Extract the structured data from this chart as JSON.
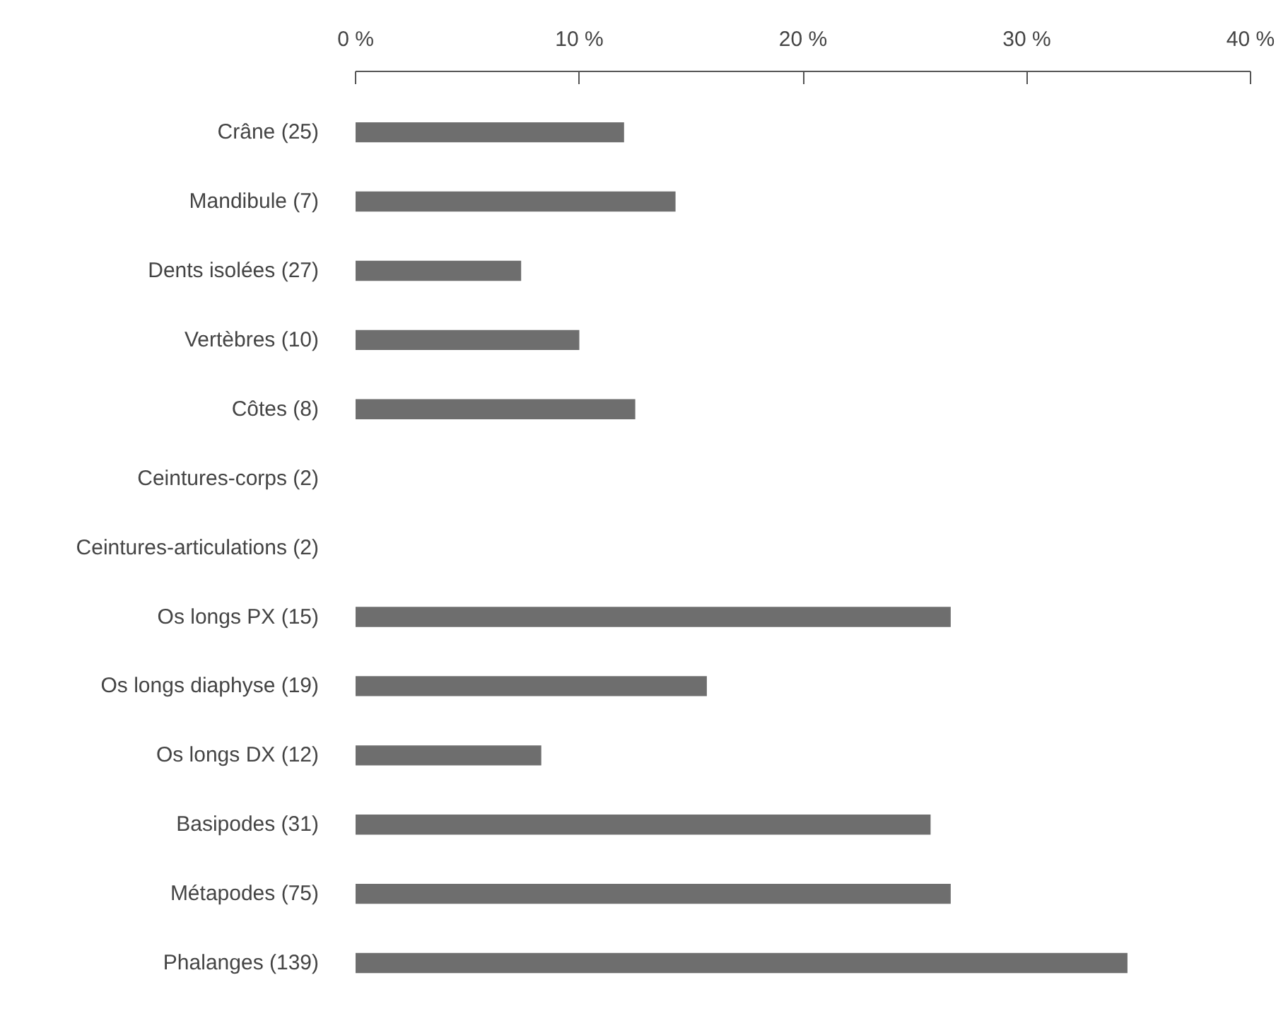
{
  "chart_data": {
    "type": "bar",
    "orientation": "horizontal",
    "categories": [
      "Crâne (25)",
      "Mandibule (7)",
      "Dents isolées (27)",
      "Vertèbres (10)",
      "Côtes (8)",
      "Ceintures-corps (2)",
      "Ceintures-articulations (2)",
      "Os longs PX (15)",
      "Os longs diaphyse (19)",
      "Os longs DX (12)",
      "Basipodes (31)",
      "Métapodes (75)",
      "Phalanges (139)"
    ],
    "values": [
      12.0,
      14.3,
      7.4,
      10.0,
      12.5,
      0,
      0,
      26.6,
      15.7,
      8.3,
      25.7,
      26.6,
      34.5
    ],
    "color": "#6e6e6e",
    "xlim": [
      0,
      40
    ],
    "xticks": [
      {
        "value": 0,
        "label": "0 %"
      },
      {
        "value": 10,
        "label": "10 %"
      },
      {
        "value": 20,
        "label": "20 %"
      },
      {
        "value": 30,
        "label": "30 %"
      },
      {
        "value": 40,
        "label": "40 %"
      }
    ],
    "grid": false
  }
}
